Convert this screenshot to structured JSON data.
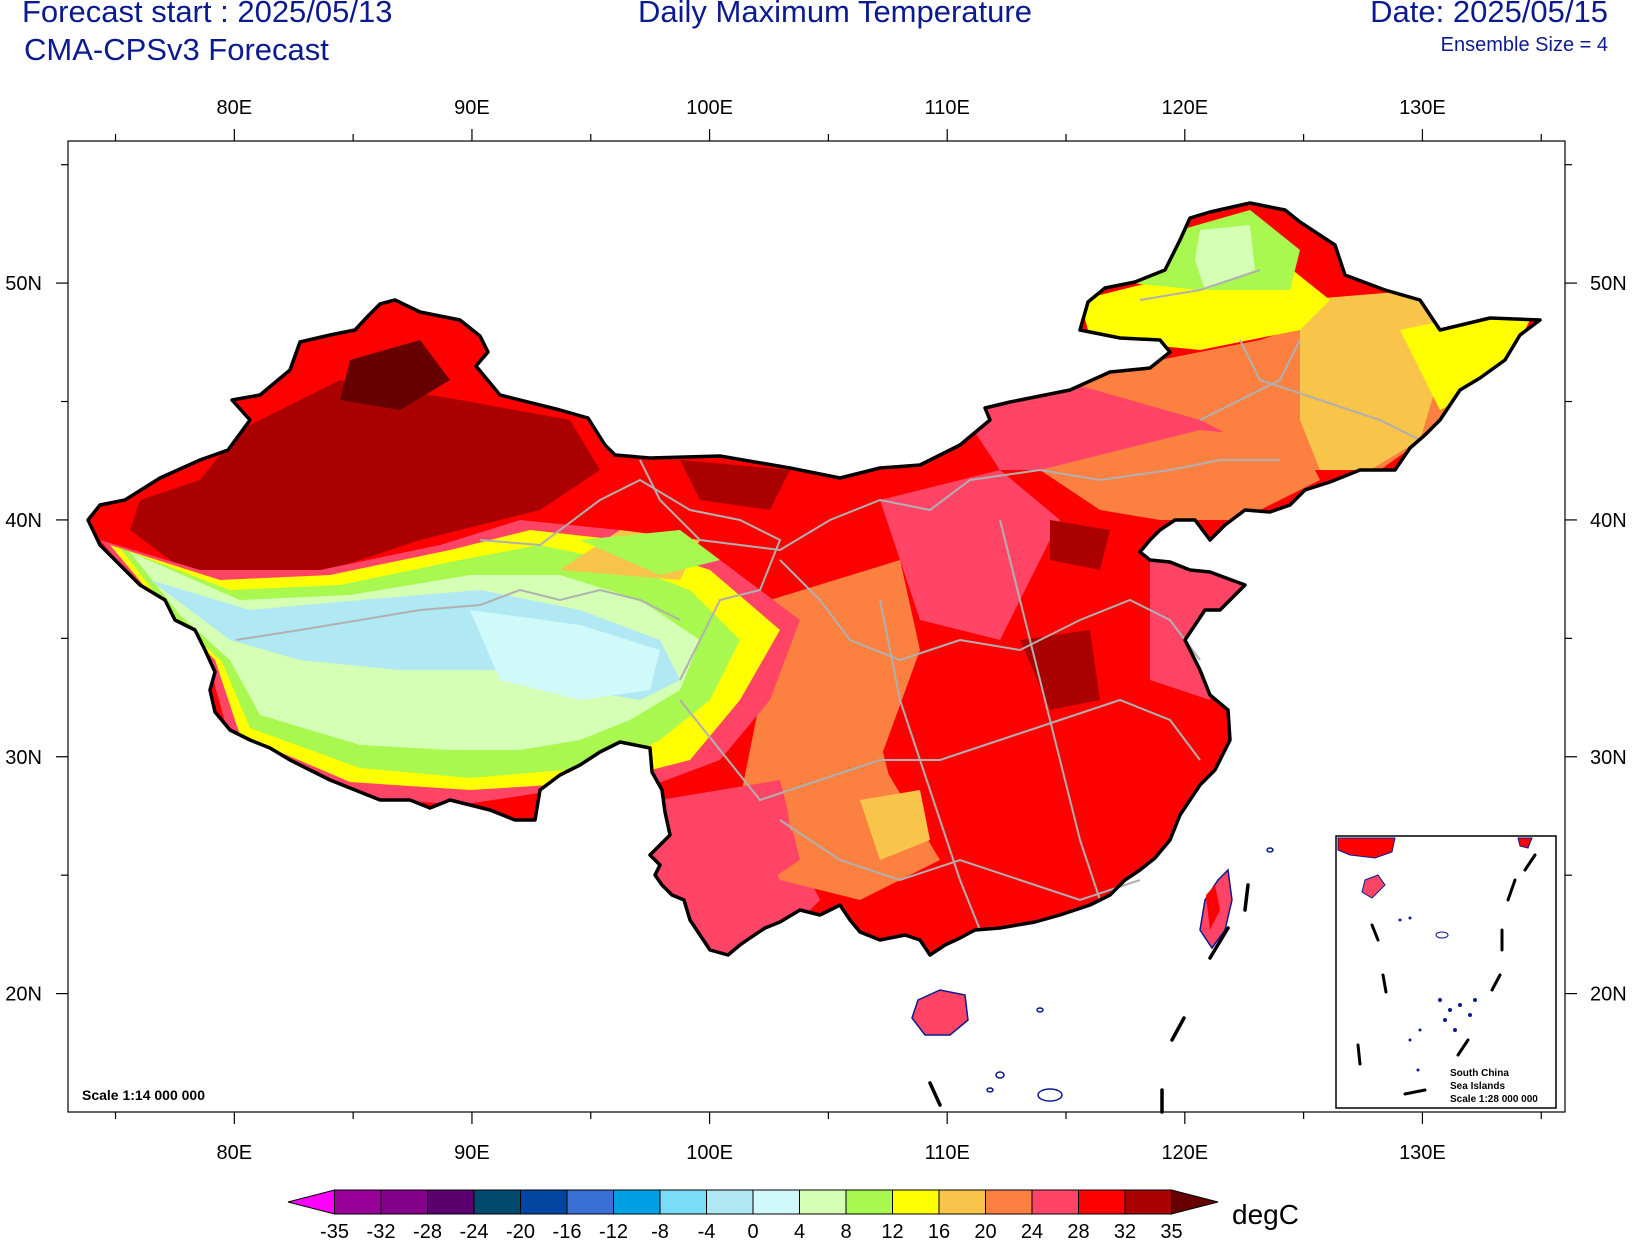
{
  "header": {
    "forecast_start": "Forecast start : 2025/05/13",
    "model": "CMA-CPSv3 Forecast",
    "title": "Daily Maximum Temperature",
    "date": "Date: 2025/05/15",
    "ensemble": "Ensemble Size = 4"
  },
  "axes": {
    "lon_labels": [
      "80E",
      "90E",
      "100E",
      "110E",
      "120E",
      "130E"
    ],
    "lat_labels": [
      "50N",
      "40N",
      "30N",
      "20N"
    ],
    "lon_values": [
      80,
      90,
      100,
      110,
      120,
      130
    ],
    "lat_values": [
      50,
      40,
      30,
      20
    ],
    "lon_range": [
      73,
      136
    ],
    "lat_range": [
      15,
      56
    ]
  },
  "map": {
    "scale_text": "Scale 1:14 000 000",
    "inset": {
      "line1": "South China",
      "line2": "Sea Islands",
      "line3": "Scale 1:28 000 000"
    }
  },
  "colorbar": {
    "unit": "degC",
    "labels": [
      "-35",
      "-32",
      "-28",
      "-24",
      "-20",
      "-16",
      "-12",
      "-8",
      "-4",
      "0",
      "4",
      "8",
      "12",
      "16",
      "20",
      "24",
      "28",
      "32",
      "35"
    ],
    "colors": [
      "#ff00ff",
      "#98009a",
      "#85008a",
      "#5a006e",
      "#004a6e",
      "#0046a0",
      "#3a6fd6",
      "#00a0e4",
      "#7adcf6",
      "#b0e8f4",
      "#d0fafa",
      "#d4ffb4",
      "#a8f850",
      "#ffff00",
      "#f8c44a",
      "#fc8040",
      "#ff4466",
      "#ff0000",
      "#aa0000",
      "#660000"
    ]
  },
  "colors": {
    "title": "#0b1a8e",
    "border": "#000000",
    "province_lines": "#b0b0b0"
  }
}
